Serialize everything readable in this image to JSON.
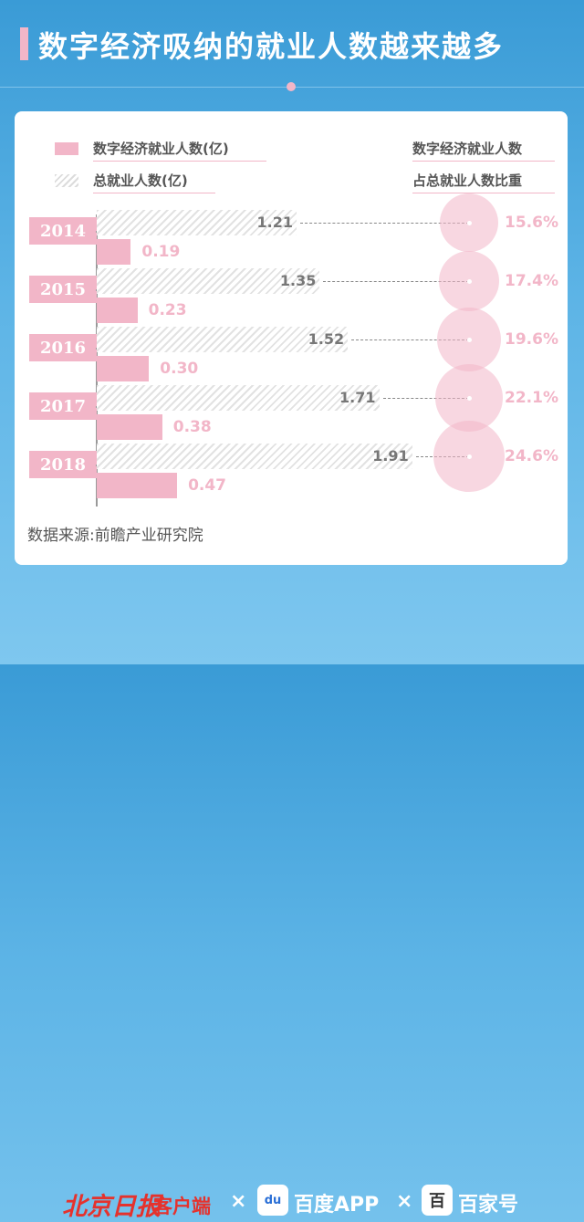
{
  "title": "数字经济吸纳的就业人数越来越多",
  "legend": {
    "digital": "数字经济就业人数(亿)",
    "total": "总就业人数(亿)",
    "share_line1": "数字经济就业人数",
    "share_line2": "占总就业人数比重"
  },
  "source": "数据来源:前瞻产业研究院",
  "footer": {
    "brand1": "北京日报",
    "brand1_sub": "客户端",
    "sep1": "×",
    "baidu_icon": "du",
    "brand2": "百度APP",
    "sep2": "×",
    "baijia_icon": "百",
    "brand3": "百家号"
  },
  "colors": {
    "pink": "#f2b6c8",
    "blue": "#3a9bd6",
    "brand_red": "#e5322d"
  },
  "chart_data": {
    "type": "bar",
    "categories": [
      "2014",
      "2015",
      "2016",
      "2017",
      "2018"
    ],
    "series": [
      {
        "name": "数字经济就业人数(亿)",
        "values": [
          0.19,
          0.23,
          0.3,
          0.38,
          0.47
        ]
      },
      {
        "name": "总就业人数(亿)",
        "values": [
          1.21,
          1.35,
          1.52,
          1.71,
          1.91
        ]
      },
      {
        "name": "数字经济就业人数占总就业人数比重",
        "values": [
          15.6,
          17.4,
          19.6,
          22.1,
          24.6
        ]
      }
    ],
    "digital_labels": [
      "0.19",
      "0.23",
      "0.30",
      "0.38",
      "0.47"
    ],
    "total_labels": [
      "1.21",
      "1.35",
      "1.52",
      "1.71",
      "1.91"
    ],
    "share_labels": [
      "15.6%",
      "17.4%",
      "19.6%",
      "22.1%",
      "24.6%"
    ]
  }
}
